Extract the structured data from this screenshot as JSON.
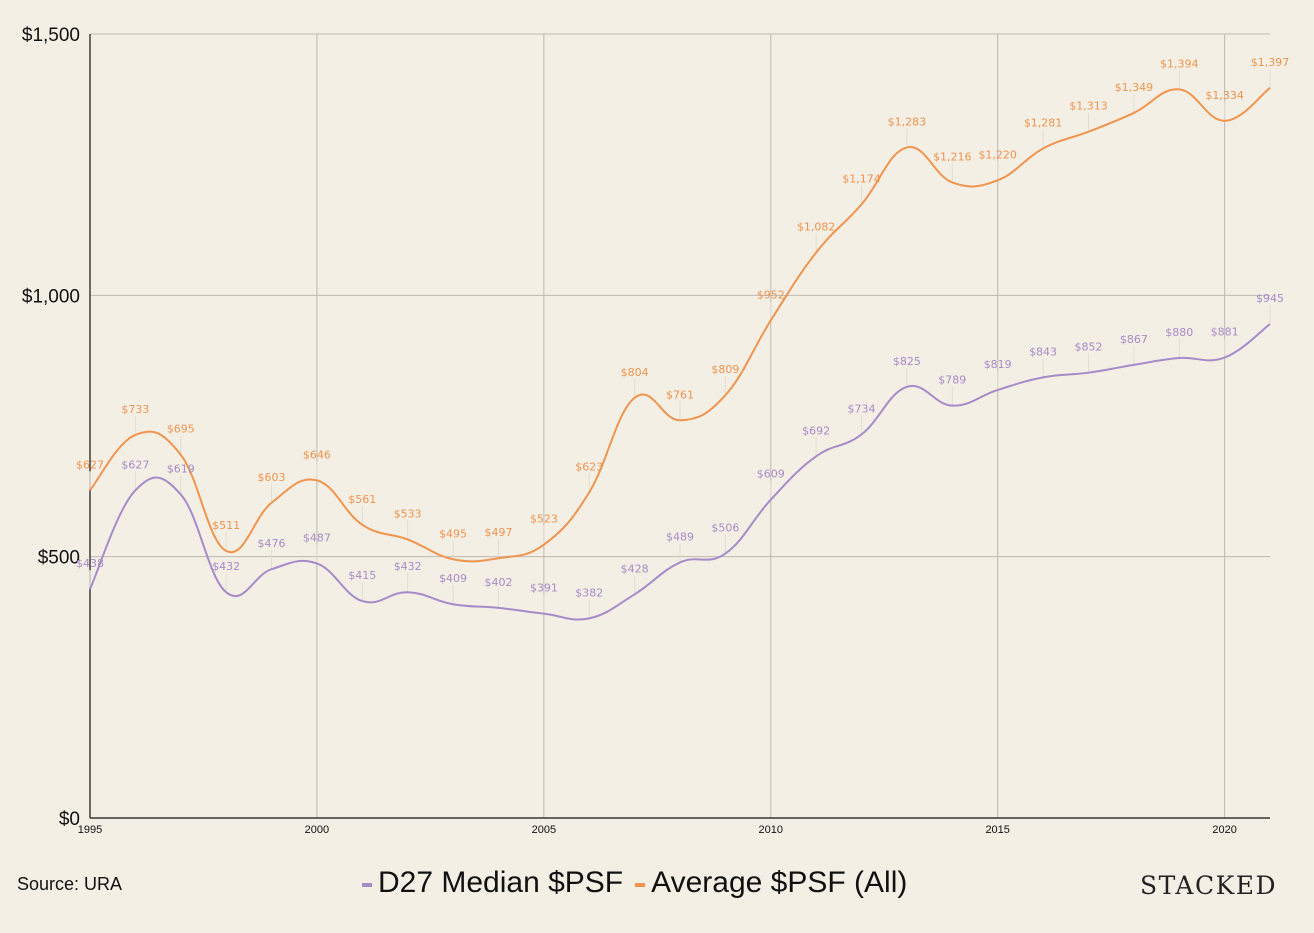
{
  "chart_data": {
    "type": "line",
    "title": "",
    "xlabel": "",
    "ylabel": "",
    "x": [
      1995,
      1996,
      1997,
      1998,
      1999,
      2000,
      2001,
      2002,
      2003,
      2004,
      2005,
      2006,
      2007,
      2008,
      2009,
      2010,
      2011,
      2012,
      2013,
      2014,
      2015,
      2016,
      2017,
      2018,
      2019,
      2020,
      2021
    ],
    "xlim": [
      1995,
      2021
    ],
    "ylim": [
      0,
      1500
    ],
    "x_ticks": [
      {
        "value": 1995,
        "label": "1995"
      },
      {
        "value": 2000,
        "label": "2000"
      },
      {
        "value": 2005,
        "label": "2005"
      },
      {
        "value": 2010,
        "label": "2010"
      },
      {
        "value": 2015,
        "label": "2015"
      },
      {
        "value": 2020,
        "label": "2020"
      }
    ],
    "y_ticks": [
      {
        "value": 0,
        "label": "$0"
      },
      {
        "value": 500,
        "label": "$500"
      },
      {
        "value": 1000,
        "label": "$1,000"
      },
      {
        "value": 1500,
        "label": "$1,500"
      }
    ],
    "grid": true,
    "legend_position": "bottom-center",
    "series": [
      {
        "name": "D27 Median $PSF",
        "color": "#a78bc9",
        "values": [
          438,
          627,
          619,
          432,
          476,
          487,
          415,
          432,
          409,
          402,
          391,
          382,
          428,
          489,
          506,
          609,
          692,
          734,
          825,
          789,
          819,
          843,
          852,
          867,
          880,
          881,
          945
        ],
        "labels": [
          "$438",
          "$627",
          "$619",
          "$432",
          "$476",
          "$487",
          "$415",
          "$432",
          "$409",
          "$402",
          "$391",
          "$382",
          "$428",
          "$489",
          "$506",
          "$609",
          "$692",
          "$734",
          "$825",
          "$789",
          "$819",
          "$843",
          "$852",
          "$867",
          "$880",
          "$881",
          "$945"
        ]
      },
      {
        "name": "Average $PSF (All)",
        "color": "#f0944e",
        "values": [
          627,
          733,
          695,
          511,
          603,
          646,
          561,
          533,
          495,
          497,
          523,
          623,
          804,
          761,
          809,
          952,
          1082,
          1174,
          1283,
          1216,
          1220,
          1281,
          1313,
          1349,
          1394,
          1334,
          1397
        ],
        "labels": [
          "$627",
          "$733",
          "$695",
          "$511",
          "$603",
          "$646",
          "$561",
          "$533",
          "$495",
          "$497",
          "$523",
          "$623",
          "$804",
          "$761",
          "$809",
          "$952",
          "$1,082",
          "$1,174",
          "$1,283",
          "$1,216",
          "$1,220",
          "$1,281",
          "$1,313",
          "$1,349",
          "$1,394",
          "$1,334",
          "$1,397"
        ]
      }
    ]
  },
  "footer": {
    "source": "Source: URA",
    "brand": "STACKED"
  },
  "colors": {
    "background": "#f3efe5",
    "grid": "#bdb9b0",
    "axis": "#111111"
  }
}
